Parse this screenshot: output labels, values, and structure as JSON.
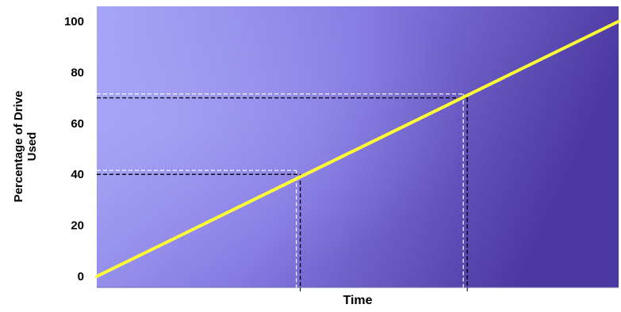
{
  "chart_data": {
    "type": "line",
    "title": "",
    "xlabel": "Time",
    "ylabel_lines": [
      "Percentage of Drive",
      "Used"
    ],
    "ylim": [
      0,
      100
    ],
    "y_ticks": [
      "0",
      "20",
      "40",
      "60",
      "80",
      "100"
    ],
    "x_ticks_shown": false,
    "grid": false,
    "legend": "none",
    "series": [
      {
        "x": [
          0,
          1
        ],
        "y": [
          0,
          100
        ],
        "color": "#ffff33"
      }
    ],
    "reference_markers": [
      {
        "x": 0.39,
        "y": 40
      },
      {
        "x": 0.71,
        "y": 70
      }
    ],
    "colors": {
      "background_start": "#a3a3f5",
      "background_end": "#4b37a0",
      "line": "#ffff33",
      "dash_white": "#ffffff",
      "dash_black": "#000000"
    }
  }
}
